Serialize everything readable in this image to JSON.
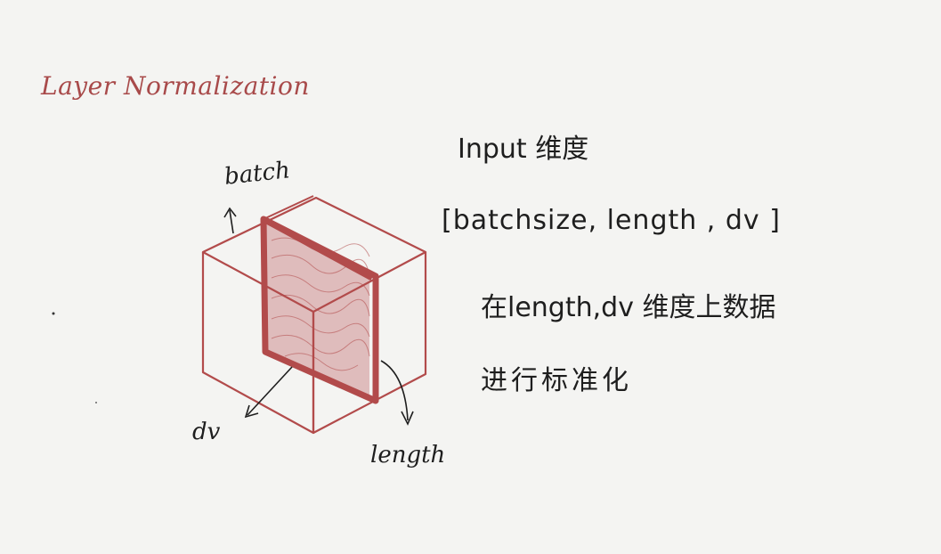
{
  "title": "Layer Normalization",
  "labels": {
    "batch": "batch",
    "dv": "dv",
    "length": "length"
  },
  "notes": {
    "input_heading": "Input 维度",
    "shape": "[batchsize, length , dv ]",
    "line1": "在length,dv 维度上数据",
    "line2": "进行标准化"
  },
  "colors": {
    "ink": "#1e1e1e",
    "cube_red": "#b24b4b",
    "title_red": "#a84a4a",
    "paper": "#f4f4f2"
  }
}
